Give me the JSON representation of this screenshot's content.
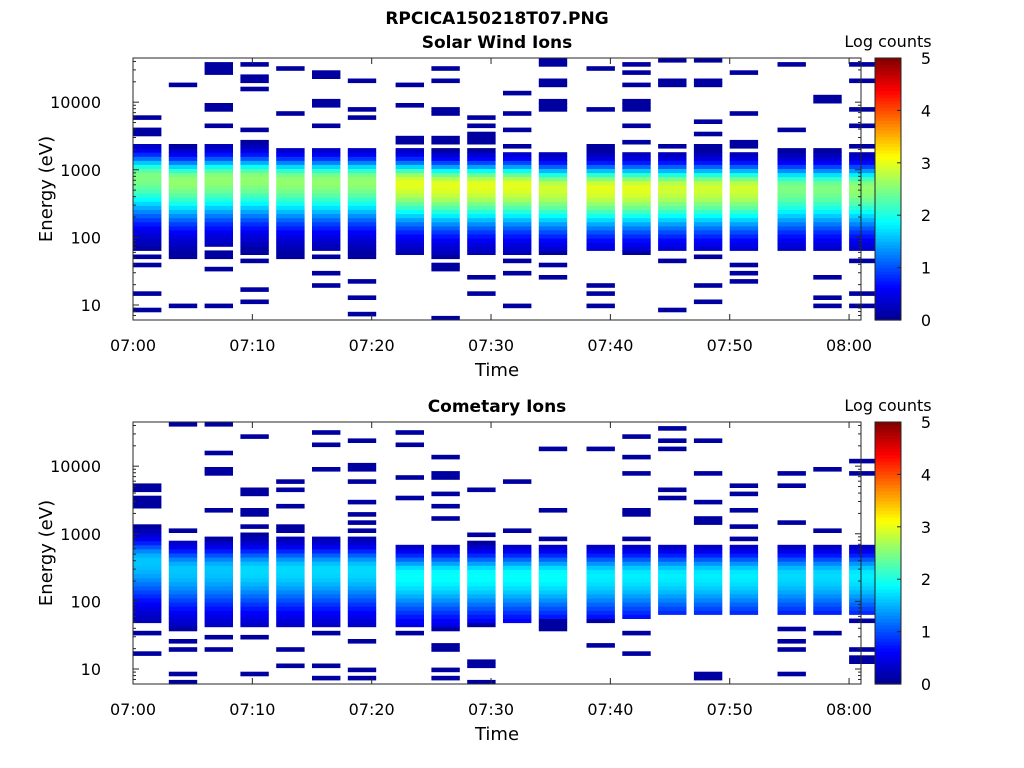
{
  "figure_title": "RPCICA150218T07.PNG",
  "colormap": [
    "#00008f",
    "#0000ff",
    "#0080ff",
    "#00ffff",
    "#80ff80",
    "#ffff00",
    "#ff8000",
    "#ff0000",
    "#800000"
  ],
  "chart_data": [
    {
      "type": "heatmap",
      "title": "Solar Wind Ions",
      "xlabel": "Time",
      "ylabel": "Energy (eV)",
      "x_ticks": [
        "07:00",
        "07:10",
        "07:20",
        "07:30",
        "07:40",
        "07:50",
        "08:00"
      ],
      "y_ticks": [
        "10",
        "100",
        "1000",
        "10000"
      ],
      "xlim": [
        "07:00",
        "08:01"
      ],
      "ylim": [
        6,
        45000
      ],
      "y_scale": "log",
      "colorbar": {
        "label": "Log counts",
        "min": 0,
        "max": 5,
        "ticks": [
          "0",
          "1",
          "2",
          "3",
          "4",
          "5"
        ]
      },
      "time_bins": [
        "07:00",
        "07:03",
        "07:06",
        "07:09",
        "07:12",
        "07:15",
        "07:18",
        "07:22",
        "07:25",
        "07:28",
        "07:31",
        "07:34",
        "07:38",
        "07:41",
        "07:44",
        "07:47",
        "07:50",
        "07:54",
        "07:57",
        "08:00"
      ],
      "peak_energy_eV": [
        800,
        700,
        750,
        750,
        700,
        700,
        700,
        650,
        600,
        600,
        600,
        550,
        550,
        550,
        550,
        550,
        550,
        550,
        550,
        550
      ],
      "peak_log_counts": [
        2.5,
        2.6,
        2.6,
        2.6,
        2.6,
        2.6,
        2.6,
        3.0,
        3.0,
        3.0,
        3.0,
        2.9,
        3.0,
        3.0,
        2.9,
        2.9,
        2.9,
        2.5,
        2.5,
        2.6
      ],
      "low_energy_cutoff_eV": [
        50,
        50,
        50,
        50,
        50,
        50,
        50,
        50,
        50,
        55,
        55,
        60,
        60,
        60,
        60,
        60,
        60,
        60,
        60,
        60
      ]
    },
    {
      "type": "heatmap",
      "title": "Cometary Ions",
      "xlabel": "Time",
      "ylabel": "Energy (eV)",
      "x_ticks": [
        "07:00",
        "07:10",
        "07:20",
        "07:30",
        "07:40",
        "07:50",
        "08:00"
      ],
      "y_ticks": [
        "10",
        "100",
        "1000",
        "10000"
      ],
      "xlim": [
        "07:00",
        "08:01"
      ],
      "ylim": [
        6,
        45000
      ],
      "y_scale": "log",
      "colorbar": {
        "label": "Log counts",
        "min": 0,
        "max": 5,
        "ticks": [
          "0",
          "1",
          "2",
          "3",
          "4",
          "5"
        ]
      },
      "time_bins": [
        "07:00",
        "07:03",
        "07:06",
        "07:09",
        "07:12",
        "07:15",
        "07:18",
        "07:22",
        "07:25",
        "07:28",
        "07:31",
        "07:34",
        "07:38",
        "07:41",
        "07:44",
        "07:47",
        "07:50",
        "07:54",
        "07:57",
        "08:00"
      ],
      "peak_energy_eV": [
        400,
        300,
        300,
        300,
        300,
        300,
        300,
        250,
        250,
        250,
        250,
        250,
        250,
        250,
        250,
        250,
        250,
        250,
        250,
        250
      ],
      "peak_log_counts": [
        1.6,
        1.6,
        1.6,
        1.7,
        1.7,
        1.7,
        1.7,
        1.9,
        1.9,
        1.9,
        1.9,
        1.9,
        1.8,
        1.8,
        1.8,
        1.8,
        1.8,
        1.7,
        1.7,
        1.8
      ],
      "low_energy_cutoff_eV": [
        45,
        45,
        45,
        45,
        45,
        45,
        45,
        45,
        45,
        50,
        50,
        55,
        55,
        55,
        60,
        60,
        60,
        60,
        60,
        60
      ]
    }
  ]
}
